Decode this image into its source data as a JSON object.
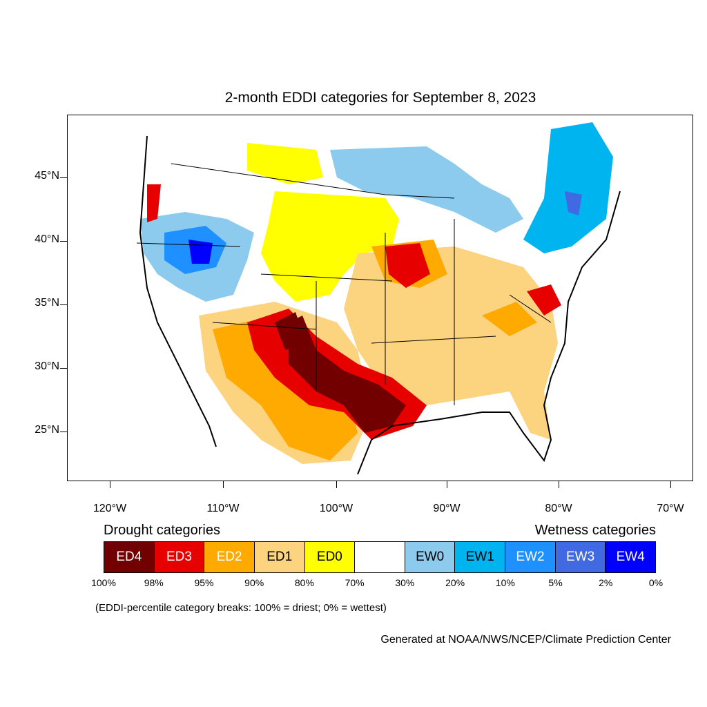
{
  "title": "2-month EDDI categories for September 8, 2023",
  "lat_labels": [
    "45°N",
    "40°N",
    "35°N",
    "30°N",
    "25°N"
  ],
  "lon_labels": [
    "120°W",
    "110°W",
    "100°W",
    "90°W",
    "80°W",
    "70°W"
  ],
  "legend": {
    "drought_heading": "Drought categories",
    "wetness_heading": "Wetness categories",
    "categories": [
      {
        "label": "ED4",
        "color": "#730000",
        "text_color": "#ffffff"
      },
      {
        "label": "ED3",
        "color": "#e60000",
        "text_color": "#ffffff"
      },
      {
        "label": "ED2",
        "color": "#ffaa00",
        "text_color": "#ffffff"
      },
      {
        "label": "ED1",
        "color": "#fcd37f",
        "text_color": "#000000"
      },
      {
        "label": "ED0",
        "color": "#ffff00",
        "text_color": "#000000"
      },
      {
        "label": "",
        "color": "#ffffff",
        "text_color": "#000000"
      },
      {
        "label": "EW0",
        "color": "#8ccbee",
        "text_color": "#000000"
      },
      {
        "label": "EW1",
        "color": "#00b4f0",
        "text_color": "#000000"
      },
      {
        "label": "EW2",
        "color": "#1e90ff",
        "text_color": "#ffffff"
      },
      {
        "label": "EW3",
        "color": "#4169e1",
        "text_color": "#ffffff"
      },
      {
        "label": "EW4",
        "color": "#0000ff",
        "text_color": "#ffffff"
      }
    ],
    "percentiles": [
      "100%",
      "98%",
      "95%",
      "90%",
      "80%",
      "70%",
      "30%",
      "20%",
      "10%",
      "5%",
      "2%",
      "0%"
    ]
  },
  "note": "(EDDI-percentile category breaks: 100% = driest; 0% = wettest)",
  "credit": "Generated at NOAA/NWS/NCEP/Climate Prediction Center"
}
